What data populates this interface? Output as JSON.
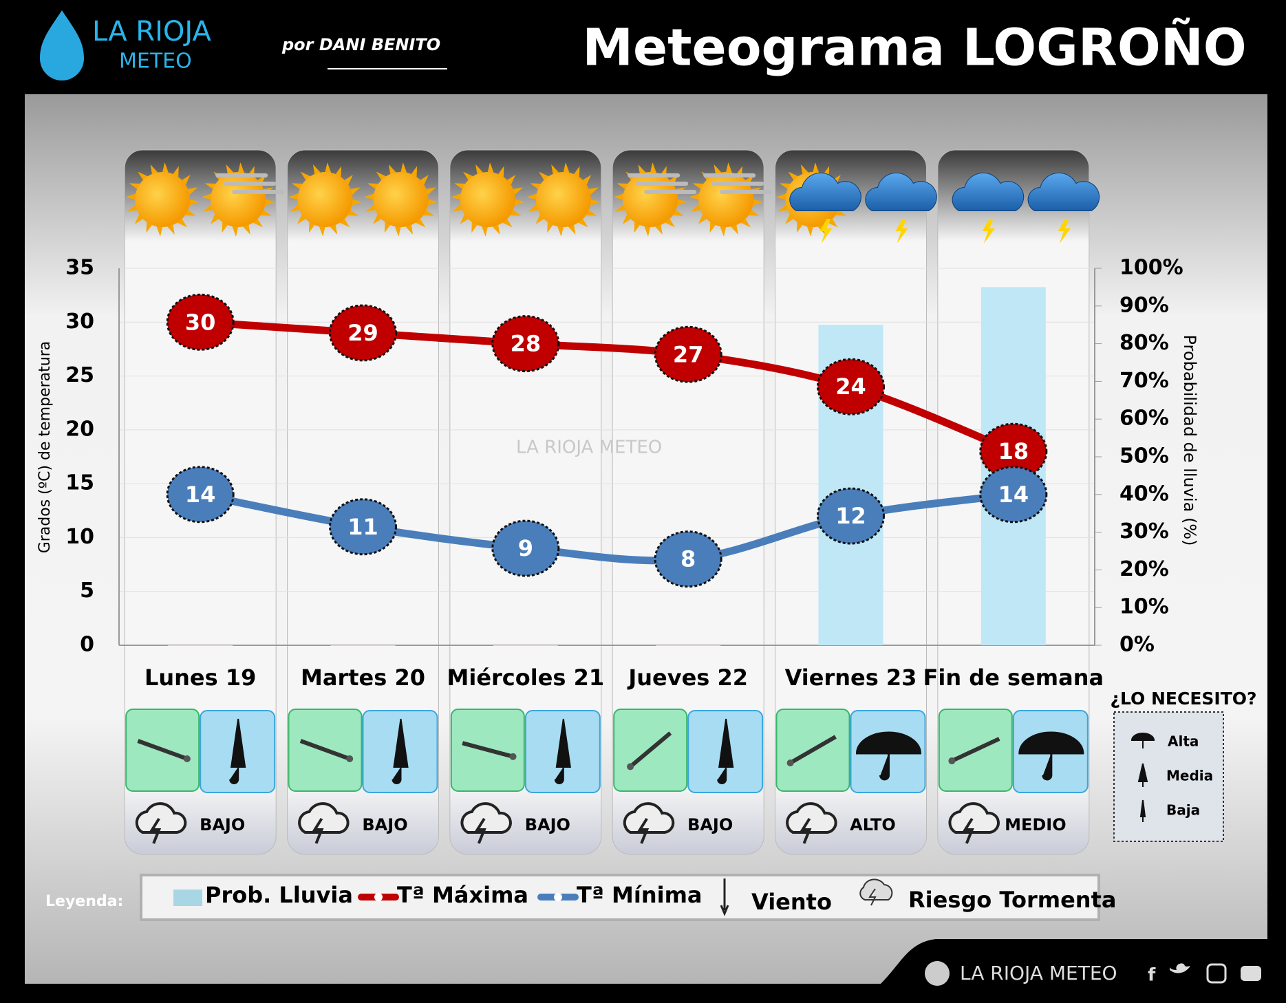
{
  "header": {
    "logo_top": "LA RIOJA",
    "logo_bottom": "METEO",
    "author": "por DANI BENITO"
  },
  "chart_data": {
    "type": "line",
    "title": "Meteograma LOGROÑO",
    "y_label": "Grados (ºC) de temperatura",
    "y2_label": "Probabilidad de lluvia (%)",
    "categories": [
      "Lunes 19",
      "Martes 20",
      "Miércoles 21",
      "Jueves 22",
      "Viernes 23",
      "Fin de semana"
    ],
    "series": [
      {
        "name": "Prob. Lluvia",
        "color": "#bfe7f6",
        "type": "bar",
        "axis": "y2",
        "values": [
          0,
          0,
          0,
          0,
          85,
          95
        ]
      },
      {
        "name": "Tª Máxima",
        "color": "#c00000",
        "type": "line",
        "values": [
          30,
          29,
          28,
          27,
          24,
          18
        ]
      },
      {
        "name": "Tª Mínima",
        "color": "#4a7ebb",
        "type": "line",
        "values": [
          14,
          11,
          9,
          8,
          12,
          14
        ]
      }
    ],
    "ylim": [
      0,
      35
    ],
    "yticks": [
      0,
      5,
      10,
      15,
      20,
      25,
      30,
      35
    ],
    "y2lim": [
      0,
      100
    ],
    "y2ticks": [
      {
        "value": 0,
        "label": "0%"
      },
      {
        "value": 10,
        "label": "10%"
      },
      {
        "value": 20,
        "label": "20%"
      },
      {
        "value": 30,
        "label": "30%"
      },
      {
        "value": 40,
        "label": "40%"
      },
      {
        "value": 50,
        "label": "50%"
      },
      {
        "value": 60,
        "label": "60%"
      },
      {
        "value": 70,
        "label": "70%"
      },
      {
        "value": 80,
        "label": "80%"
      },
      {
        "value": 90,
        "label": "90%"
      },
      {
        "value": 100,
        "label": "100%"
      }
    ],
    "grid": true
  },
  "storm_risk": [
    "BAJO",
    "BAJO",
    "BAJO",
    "BAJO",
    "ALTO",
    "MEDIO"
  ],
  "umbrella_legend": {
    "title": "¿LO NECESITO?",
    "levels": [
      "Alta",
      "Media",
      "Baja"
    ]
  },
  "legend": {
    "label": "Leyenda:",
    "extra": [
      "Viento",
      "Riesgo Tormenta"
    ]
  },
  "watermark": "LA RIOJA METEO",
  "footer": "LA RIOJA METEO"
}
